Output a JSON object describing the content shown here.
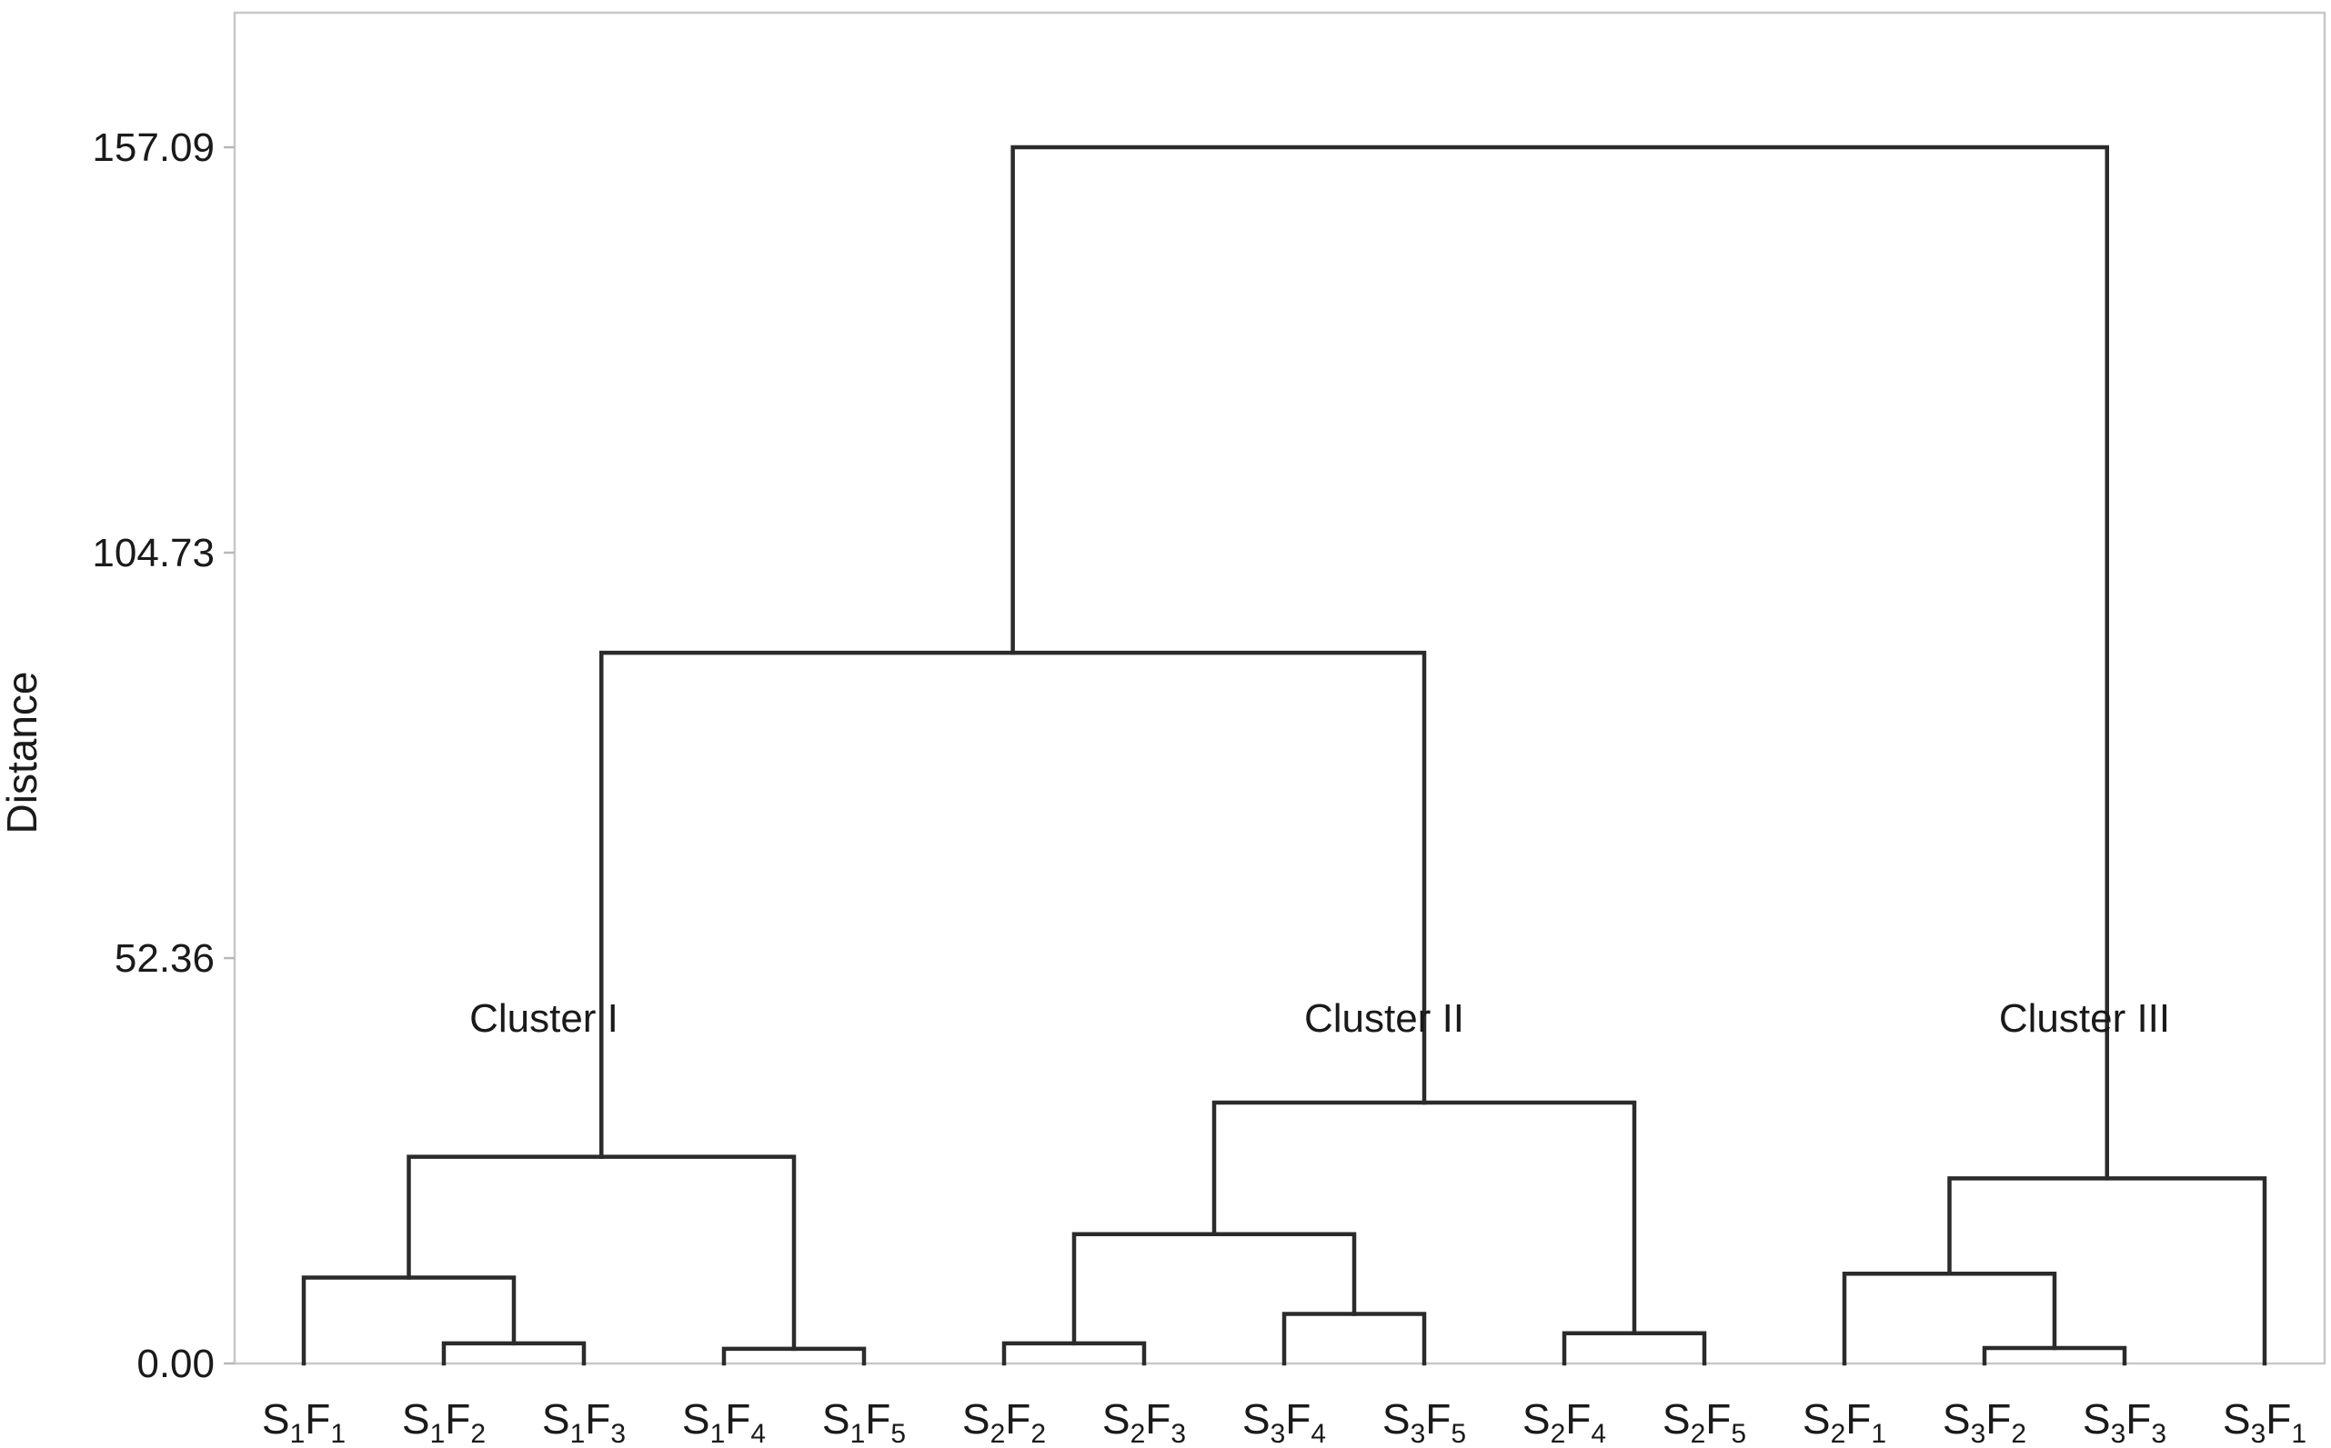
{
  "chart_data": {
    "type": "dendrogram",
    "ylabel": "Distance",
    "yticks": [
      0.0,
      52.36,
      104.73,
      157.09
    ],
    "ytick_labels": [
      "0.00",
      "52.36",
      "104.73",
      "157.09"
    ],
    "ylim": [
      0,
      174
    ],
    "leaves": [
      {
        "id": "S1F1",
        "s": "1",
        "f": "1"
      },
      {
        "id": "S1F2",
        "s": "1",
        "f": "2"
      },
      {
        "id": "S1F3",
        "s": "1",
        "f": "3"
      },
      {
        "id": "S1F4",
        "s": "1",
        "f": "4"
      },
      {
        "id": "S1F5",
        "s": "1",
        "f": "5"
      },
      {
        "id": "S2F2",
        "s": "2",
        "f": "2"
      },
      {
        "id": "S2F3",
        "s": "2",
        "f": "3"
      },
      {
        "id": "S3F4",
        "s": "3",
        "f": "4"
      },
      {
        "id": "S3F5",
        "s": "3",
        "f": "5"
      },
      {
        "id": "S2F4",
        "s": "2",
        "f": "4"
      },
      {
        "id": "S2F5",
        "s": "2",
        "f": "5"
      },
      {
        "id": "S2F1",
        "s": "2",
        "f": "1"
      },
      {
        "id": "S3F2",
        "s": "3",
        "f": "2"
      },
      {
        "id": "S3F3",
        "s": "3",
        "f": "3"
      },
      {
        "id": "S3F1",
        "s": "3",
        "f": "1"
      }
    ],
    "merges": [
      {
        "left": "S1F2",
        "right": "S1F3",
        "height": 2.6
      },
      {
        "left": "S1F1",
        "right": "m0",
        "height": 11.1
      },
      {
        "left": "S1F4",
        "right": "S1F5",
        "height": 1.9
      },
      {
        "left": "m1",
        "right": "m2",
        "height": 26.7
      },
      {
        "left": "S2F2",
        "right": "S2F3",
        "height": 2.6
      },
      {
        "left": "S3F4",
        "right": "S3F5",
        "height": 6.4
      },
      {
        "left": "m4",
        "right": "m5",
        "height": 16.7
      },
      {
        "left": "S2F4",
        "right": "S2F5",
        "height": 3.9
      },
      {
        "left": "m6",
        "right": "m7",
        "height": 33.7
      },
      {
        "left": "m3",
        "right": "m8",
        "height": 91.8
      },
      {
        "left": "S3F2",
        "right": "S3F3",
        "height": 2.0
      },
      {
        "left": "S2F1",
        "right": "m10",
        "height": 11.6
      },
      {
        "left": "m11",
        "right": "S3F1",
        "height": 23.9
      },
      {
        "left": "m9",
        "right": "m12",
        "height": 157.09
      }
    ],
    "cluster_labels": [
      {
        "text": "Cluster I",
        "near": "S1F2"
      },
      {
        "text": "Cluster II",
        "near": "S3F4"
      },
      {
        "text": "Cluster III",
        "near": "S3F2"
      }
    ]
  }
}
